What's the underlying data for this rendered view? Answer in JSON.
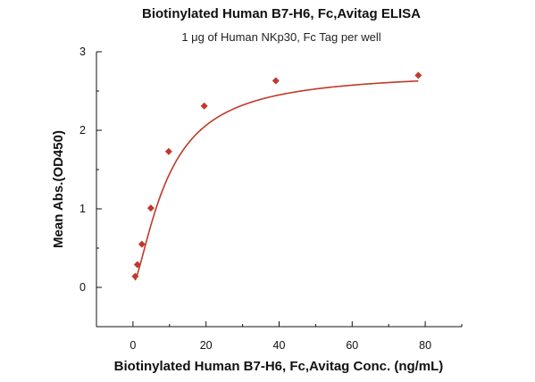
{
  "chart_data": {
    "type": "scatter",
    "title": "Biotinylated Human B7-H6, Fc,Avitag ELISA",
    "subtitle": "1 μg of Human NKp30, Fc Tag per well",
    "xlabel": "Biotinylated Human B7-H6, Fc,Avitag Conc. (ng/mL)",
    "ylabel": "Mean Abs.(OD450)",
    "xlim": [
      -10,
      90
    ],
    "ylim": [
      -0.5,
      3
    ],
    "xticks": [
      0,
      20,
      40,
      60,
      80
    ],
    "yticks": [
      0,
      1,
      2,
      3
    ],
    "grid": false,
    "legend": "none",
    "series": [
      {
        "color": "#c0392b",
        "marker": "diamond",
        "fit": "four-parameter-logistic",
        "x": [
          0.61,
          1.22,
          2.44,
          4.88,
          9.77,
          19.5,
          39.1,
          78.1
        ],
        "y": [
          0.14,
          0.29,
          0.55,
          1.01,
          1.73,
          2.31,
          2.63,
          2.7
        ]
      }
    ]
  }
}
